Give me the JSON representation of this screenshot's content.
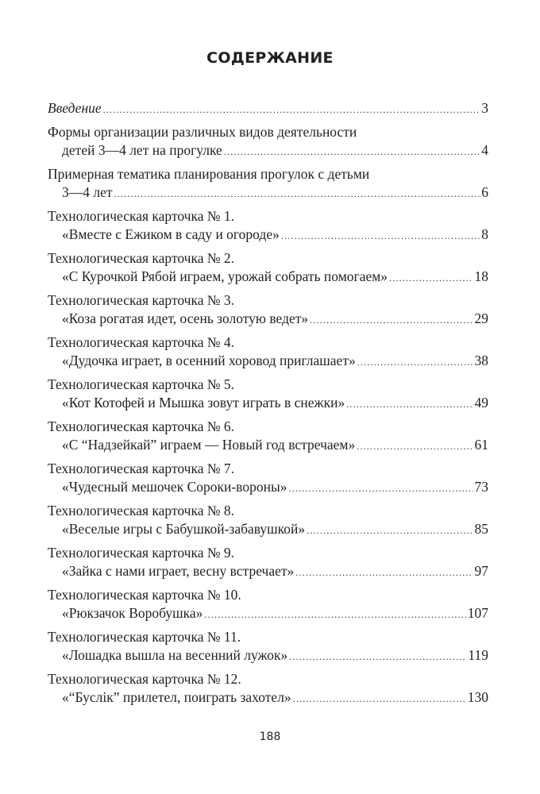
{
  "title": "СОДЕРЖАНИЕ",
  "entries": [
    {
      "lines": [],
      "last": "Введение",
      "page": "3",
      "italic": true
    },
    {
      "lines": [
        "Формы организации различных видов деятельности"
      ],
      "last": "детей 3—4 лет на прогулке",
      "page": "4"
    },
    {
      "lines": [
        "Примерная тематика планирования прогулок с детьми"
      ],
      "last": "3—4 лет",
      "page": "6"
    },
    {
      "lines": [
        "Технологическая карточка № 1."
      ],
      "last": "«Вместе с Ежиком в саду и огороде»",
      "page": "8"
    },
    {
      "lines": [
        "Технологическая карточка № 2."
      ],
      "last": "«С Курочкой Рябой играем, урожай собрать помогаем»",
      "page": "18"
    },
    {
      "lines": [
        "Технологическая карточка № 3."
      ],
      "last": "«Коза рогатая идет, осень золотую ведет»",
      "page": "29"
    },
    {
      "lines": [
        "Технологическая карточка № 4."
      ],
      "last": "«Дудочка играет, в осенний хоровод приглашает»",
      "page": "38"
    },
    {
      "lines": [
        "Технологическая карточка № 5."
      ],
      "last": "«Кот Котофей и Мышка зовут играть в снежки»",
      "page": "49"
    },
    {
      "lines": [
        "Технологическая карточка № 6."
      ],
      "last": "«С “Надзейкай” играем — Новый год встречаем»",
      "page": "61"
    },
    {
      "lines": [
        "Технологическая карточка № 7."
      ],
      "last": "«Чудесный мешочек Сороки-вороны»",
      "page": "73"
    },
    {
      "lines": [
        "Технологическая карточка № 8."
      ],
      "last": "«Веселые игры с Бабушкой-забавушкой»",
      "page": "85"
    },
    {
      "lines": [
        "Технологическая карточка № 9."
      ],
      "last": "«Зайка с нами играет, весну встречает»",
      "page": "97"
    },
    {
      "lines": [
        "Технологическая карточка № 10."
      ],
      "last": "«Рюкзачок Воробушка»",
      "page": "107"
    },
    {
      "lines": [
        "Технологическая карточка № 11."
      ],
      "last": "«Лошадка вышла на весенний лужок»",
      "page": "119"
    },
    {
      "lines": [
        "Технологическая карточка № 12."
      ],
      "last": "«“Буслік” прилетел, поиграть захотел»",
      "page": "130"
    }
  ],
  "page_number": "188"
}
